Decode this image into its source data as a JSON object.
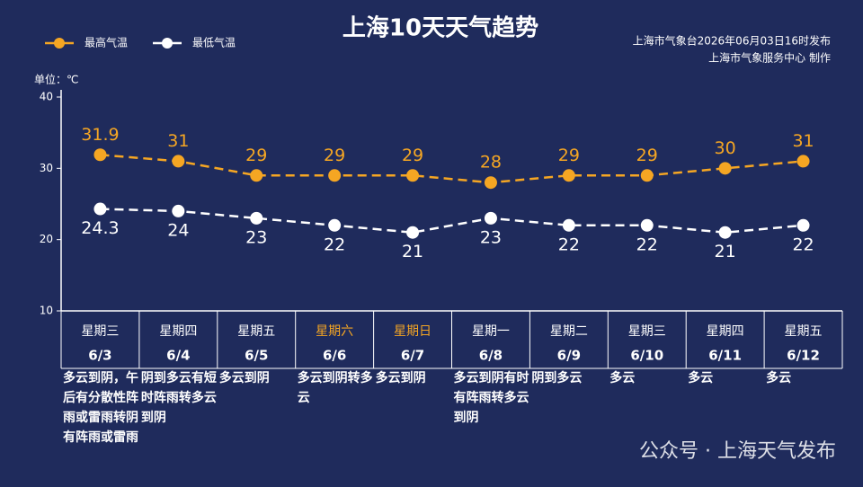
{
  "chart_data": {
    "type": "line",
    "title": "上海10天天气趋势",
    "source_lines": [
      "上海市气象台2026年06月03日16时发布",
      "上海市气象服务中心  制作"
    ],
    "y_label": "单位：℃",
    "categories": [
      "6/3",
      "6/4",
      "6/5",
      "6/6",
      "6/7",
      "6/8",
      "6/9",
      "6/10",
      "6/11",
      "6/12"
    ],
    "weekdays": [
      "星期三",
      "星期四",
      "星期五",
      "星期六",
      "星期日",
      "星期一",
      "星期二",
      "星期三",
      "星期四",
      "星期五"
    ],
    "weekday_highlight": {
      "indices": [
        3,
        4
      ],
      "color": "#f5a623"
    },
    "weather": [
      "多云到阴，午后有分散性阵雨或雷雨转阴有阵雨或雷雨",
      "阴到多云有短时阵雨转多云到阴",
      "多云到阴",
      "多云到阴转多云",
      "多云到阴",
      "多云到阴有时有阵雨转多云到阴",
      "阴到多云",
      "多云",
      "多云",
      "多云"
    ],
    "series": [
      {
        "name": "最高气温",
        "color": "#f5a623",
        "values": [
          31.9,
          31,
          29,
          29,
          29,
          28,
          29,
          29,
          30,
          31
        ]
      },
      {
        "name": "最低气温",
        "color": "#ffffff",
        "values": [
          24.3,
          24,
          23,
          22,
          21,
          23,
          22,
          22,
          21,
          22
        ]
      }
    ],
    "ylim": [
      10,
      40
    ],
    "yticks": [
      10,
      20,
      30,
      40
    ],
    "watermark": "公众号 · 上海天气发布"
  }
}
